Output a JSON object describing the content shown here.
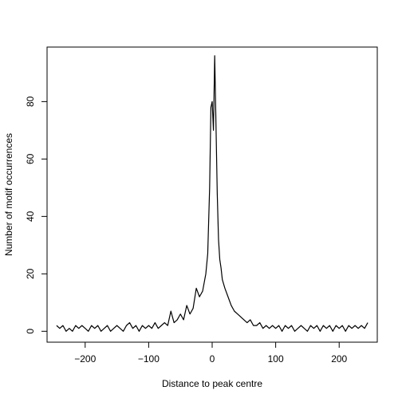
{
  "chart_data": {
    "type": "line",
    "title": "",
    "xlabel": "Distance to peak centre",
    "ylabel": "Number of motif occurrences",
    "xlim": [
      -260,
      260
    ],
    "ylim": [
      -3.8,
      99
    ],
    "x_ticks": [
      -200,
      -100,
      0,
      100,
      200
    ],
    "x_tick_labels": [
      "−200",
      "−100",
      "0",
      "100",
      "200"
    ],
    "y_ticks": [
      0,
      20,
      40,
      60,
      80
    ],
    "y_tick_labels": [
      "0",
      "20",
      "40",
      "60",
      "80"
    ],
    "grid": false,
    "legend": "none",
    "series": [
      {
        "color": "#000000",
        "points": [
          [
            -245,
            2
          ],
          [
            -240,
            1
          ],
          [
            -235,
            2
          ],
          [
            -230,
            0
          ],
          [
            -225,
            1
          ],
          [
            -220,
            0
          ],
          [
            -215,
            2
          ],
          [
            -210,
            1
          ],
          [
            -205,
            2
          ],
          [
            -200,
            1
          ],
          [
            -195,
            0
          ],
          [
            -190,
            2
          ],
          [
            -185,
            1
          ],
          [
            -180,
            2
          ],
          [
            -175,
            0
          ],
          [
            -170,
            1
          ],
          [
            -165,
            2
          ],
          [
            -160,
            0
          ],
          [
            -155,
            1
          ],
          [
            -150,
            2
          ],
          [
            -145,
            1
          ],
          [
            -140,
            0
          ],
          [
            -135,
            2
          ],
          [
            -130,
            3
          ],
          [
            -125,
            1
          ],
          [
            -120,
            2
          ],
          [
            -115,
            0
          ],
          [
            -110,
            2
          ],
          [
            -105,
            1
          ],
          [
            -100,
            2
          ],
          [
            -95,
            1
          ],
          [
            -90,
            3
          ],
          [
            -85,
            1
          ],
          [
            -80,
            2
          ],
          [
            -75,
            3
          ],
          [
            -70,
            2
          ],
          [
            -65,
            7
          ],
          [
            -60,
            3
          ],
          [
            -55,
            4
          ],
          [
            -50,
            6
          ],
          [
            -45,
            4
          ],
          [
            -40,
            9
          ],
          [
            -35,
            6
          ],
          [
            -30,
            8
          ],
          [
            -25,
            15
          ],
          [
            -20,
            12
          ],
          [
            -15,
            14
          ],
          [
            -10,
            20
          ],
          [
            -7,
            27
          ],
          [
            -4,
            50
          ],
          [
            -2,
            78
          ],
          [
            0,
            80
          ],
          [
            2,
            70
          ],
          [
            4,
            96
          ],
          [
            6,
            72
          ],
          [
            8,
            48
          ],
          [
            10,
            32
          ],
          [
            12,
            25
          ],
          [
            14,
            22
          ],
          [
            16,
            18
          ],
          [
            20,
            15
          ],
          [
            25,
            12
          ],
          [
            30,
            9
          ],
          [
            35,
            7
          ],
          [
            40,
            6
          ],
          [
            45,
            5
          ],
          [
            50,
            4
          ],
          [
            55,
            3
          ],
          [
            60,
            4
          ],
          [
            65,
            2
          ],
          [
            70,
            2
          ],
          [
            75,
            3
          ],
          [
            80,
            1
          ],
          [
            85,
            2
          ],
          [
            90,
            1
          ],
          [
            95,
            2
          ],
          [
            100,
            1
          ],
          [
            105,
            2
          ],
          [
            110,
            0
          ],
          [
            115,
            2
          ],
          [
            120,
            1
          ],
          [
            125,
            2
          ],
          [
            130,
            0
          ],
          [
            135,
            1
          ],
          [
            140,
            2
          ],
          [
            145,
            1
          ],
          [
            150,
            0
          ],
          [
            155,
            2
          ],
          [
            160,
            1
          ],
          [
            165,
            2
          ],
          [
            170,
            0
          ],
          [
            175,
            2
          ],
          [
            180,
            1
          ],
          [
            185,
            2
          ],
          [
            190,
            0
          ],
          [
            195,
            2
          ],
          [
            200,
            1
          ],
          [
            205,
            2
          ],
          [
            210,
            0
          ],
          [
            215,
            2
          ],
          [
            220,
            1
          ],
          [
            225,
            2
          ],
          [
            230,
            1
          ],
          [
            235,
            2
          ],
          [
            240,
            1
          ],
          [
            245,
            3
          ]
        ]
      }
    ]
  }
}
